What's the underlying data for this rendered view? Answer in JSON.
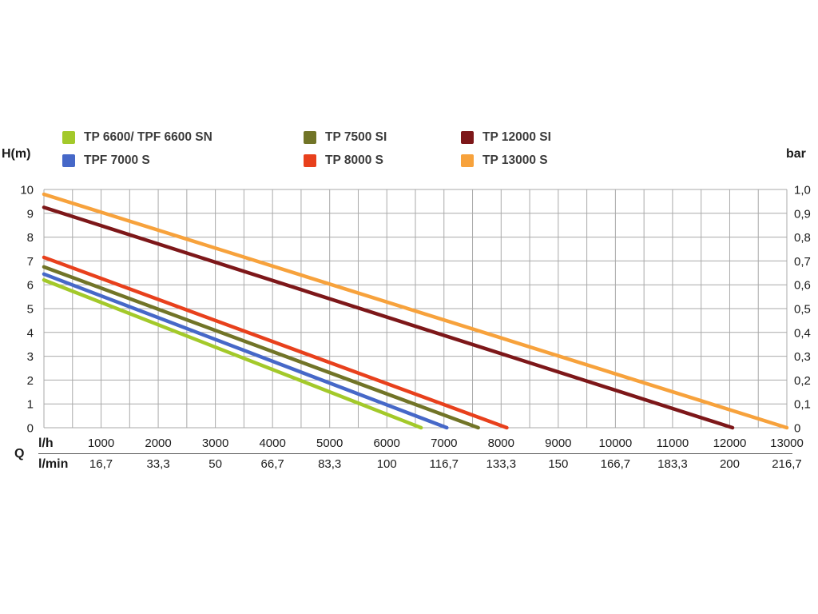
{
  "labels": {
    "y_left": "H(m)",
    "y_right": "bar",
    "q": "Q",
    "x_row1": "l/h",
    "x_row2": "l/min"
  },
  "legend": {
    "position": "top",
    "items": [
      {
        "label": "TP 6600/ TPF 6600 SN",
        "color": "#a3c92a"
      },
      {
        "label": "TPF 7000 S",
        "color": "#4668c8"
      },
      {
        "label": "TP 7500 SI",
        "color": "#717427"
      },
      {
        "label": "TP 8000 S",
        "color": "#e8401c"
      },
      {
        "label": "TP 12000 SI",
        "color": "#7d1719"
      },
      {
        "label": "TP 13000 S",
        "color": "#f7a23c"
      }
    ]
  },
  "chart_data": {
    "type": "line",
    "title": "",
    "xlabel": "Q (l/h and l/min)",
    "ylabel_left": "H(m)",
    "ylabel_right": "bar",
    "xlim": [
      0,
      13000
    ],
    "ylim": [
      0,
      10
    ],
    "grid": {
      "on": true,
      "x_step": 500,
      "y_step": 1,
      "color": "#a9a9a9"
    },
    "x_ticks_lh": [
      "1000",
      "2000",
      "3000",
      "4000",
      "5000",
      "6000",
      "7000",
      "8000",
      "9000",
      "10000",
      "11000",
      "12000",
      "13000"
    ],
    "x_ticks_lmin": [
      "16,7",
      "33,3",
      "50",
      "66,7",
      "83,3",
      "100",
      "116,7",
      "133,3",
      "150",
      "166,7",
      "183,3",
      "200",
      "216,7"
    ],
    "y_ticks_left": [
      "10",
      "9",
      "8",
      "7",
      "6",
      "5",
      "4",
      "3",
      "2",
      "1",
      "0"
    ],
    "y_ticks_right": [
      "1,0",
      "0,9",
      "0,8",
      "0,7",
      "0,6",
      "0,5",
      "0,4",
      "0,3",
      "0,2",
      "0,1",
      "0"
    ],
    "series": [
      {
        "name": "TP 6600/ TPF 6600 SN",
        "color": "#a3c92a",
        "points": [
          [
            0,
            6.2
          ],
          [
            6600,
            0
          ]
        ]
      },
      {
        "name": "TPF 7000 S",
        "color": "#4668c8",
        "points": [
          [
            0,
            6.45
          ],
          [
            7050,
            0
          ]
        ]
      },
      {
        "name": "TP 7500 SI",
        "color": "#717427",
        "points": [
          [
            0,
            6.75
          ],
          [
            7600,
            0
          ]
        ]
      },
      {
        "name": "TP 8000 S",
        "color": "#e8401c",
        "points": [
          [
            0,
            7.15
          ],
          [
            8100,
            0
          ]
        ]
      },
      {
        "name": "TP 12000 SI",
        "color": "#7d1719",
        "points": [
          [
            0,
            9.25
          ],
          [
            12050,
            0
          ]
        ]
      },
      {
        "name": "TP 13000 S",
        "color": "#f7a23c",
        "points": [
          [
            0,
            9.8
          ],
          [
            13000,
            0
          ]
        ]
      }
    ]
  }
}
